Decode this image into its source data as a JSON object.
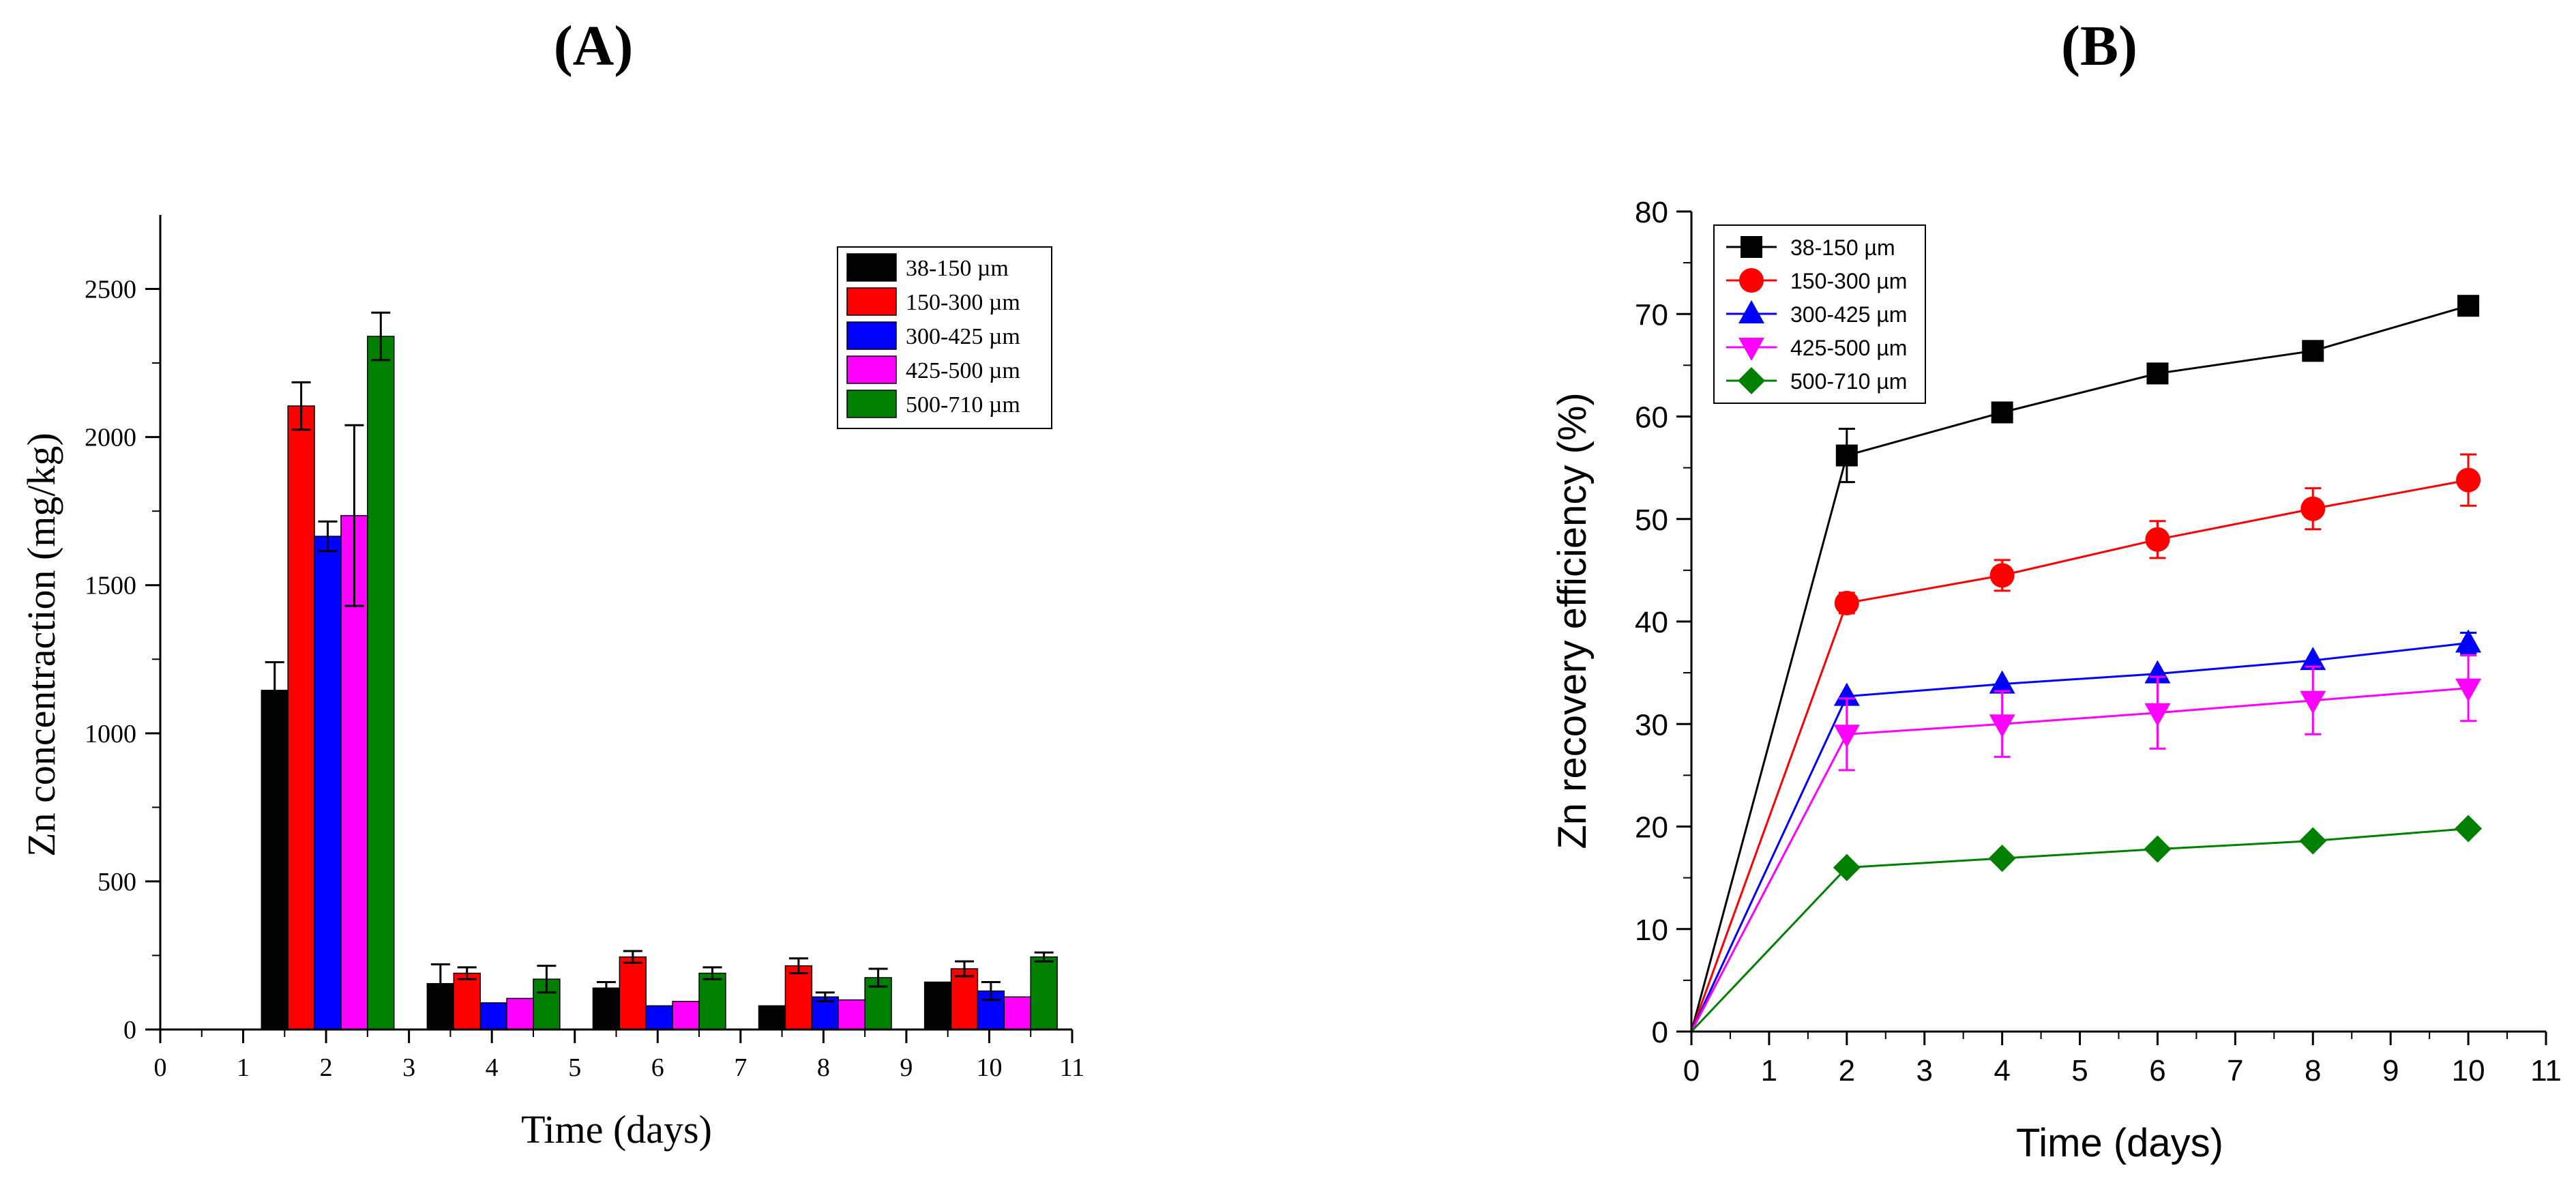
{
  "figure": {
    "panel_a_label": "(A)",
    "panel_b_label": "(B)"
  },
  "chart_data": [
    {
      "type": "bar",
      "title": "(A)",
      "xlabel": "Time (days)",
      "ylabel": "Zn concentraction (mg/kg)",
      "xlim": [
        0,
        11
      ],
      "ylim": [
        0,
        2750
      ],
      "xticks": [
        0,
        1,
        2,
        3,
        4,
        5,
        6,
        7,
        8,
        9,
        10,
        11
      ],
      "yticks": [
        0,
        500,
        1000,
        1500,
        2000,
        2500
      ],
      "legend_position": "top-right",
      "bar_width": 0.32,
      "groups": [
        {
          "start": 1.22
        },
        {
          "start": 3.22
        },
        {
          "start": 5.22
        },
        {
          "start": 7.22
        },
        {
          "start": 9.22
        }
      ],
      "series": [
        {
          "name": "38-150 µm",
          "color": "#000000",
          "values": [
            1145,
            155,
            140,
            80,
            160
          ],
          "errors": [
            95,
            65,
            20,
            0,
            0
          ]
        },
        {
          "name": "150-300 µm",
          "color": "#ff0000",
          "values": [
            2105,
            190,
            245,
            215,
            205
          ],
          "errors": [
            80,
            20,
            20,
            25,
            25
          ]
        },
        {
          "name": "300-425 µm",
          "color": "#0000ff",
          "values": [
            1665,
            90,
            80,
            110,
            130
          ],
          "errors": [
            50,
            0,
            0,
            15,
            30
          ]
        },
        {
          "name": "425-500 µm",
          "color": "#ff00ff",
          "values": [
            1735,
            105,
            95,
            100,
            110
          ],
          "errors": [
            305,
            0,
            0,
            0,
            0
          ]
        },
        {
          "name": "500-710 µm",
          "color": "#008000",
          "values": [
            2340,
            170,
            190,
            175,
            245
          ],
          "errors": [
            80,
            45,
            20,
            30,
            15
          ]
        }
      ]
    },
    {
      "type": "line",
      "title": "(B)",
      "xlabel": "Time (days)",
      "ylabel": "Zn recovery efficiency (%)",
      "xlim": [
        0,
        11
      ],
      "ylim": [
        0,
        80
      ],
      "xticks": [
        0,
        1,
        2,
        3,
        4,
        5,
        6,
        7,
        8,
        9,
        10,
        11
      ],
      "yticks": [
        0,
        10,
        20,
        30,
        40,
        50,
        60,
        70,
        80
      ],
      "legend_position": "top-left",
      "x": [
        0,
        2,
        4,
        6,
        8,
        10
      ],
      "series": [
        {
          "name": "38-150 µm",
          "color": "#000000",
          "marker": "square",
          "values": [
            0,
            56.2,
            60.4,
            64.2,
            66.4,
            70.8
          ],
          "errors": [
            0,
            2.6,
            0,
            0,
            0,
            0
          ]
        },
        {
          "name": "150-300 µm",
          "color": "#ff0000",
          "marker": "circle",
          "values": [
            0,
            41.8,
            44.5,
            48.0,
            51.0,
            53.8
          ],
          "errors": [
            0,
            1.0,
            1.5,
            1.8,
            2.0,
            2.5
          ]
        },
        {
          "name": "300-425 µm",
          "color": "#0000ff",
          "marker": "triangle-up",
          "values": [
            0,
            32.7,
            33.9,
            34.9,
            36.2,
            37.9
          ],
          "errors": [
            0,
            0,
            0,
            0,
            0,
            1.0
          ]
        },
        {
          "name": "425-500  µm",
          "color": "#ff00ff",
          "marker": "triangle-down",
          "values": [
            0,
            29.0,
            30.0,
            31.1,
            32.3,
            33.5
          ],
          "errors": [
            0,
            3.5,
            3.2,
            3.5,
            3.3,
            3.2
          ]
        },
        {
          "name": "500-710 µm",
          "color": "#008000",
          "marker": "diamond",
          "values": [
            0,
            16.0,
            16.9,
            17.8,
            18.6,
            19.8
          ],
          "errors": [
            0,
            0,
            0,
            0,
            0,
            0
          ]
        }
      ]
    }
  ]
}
